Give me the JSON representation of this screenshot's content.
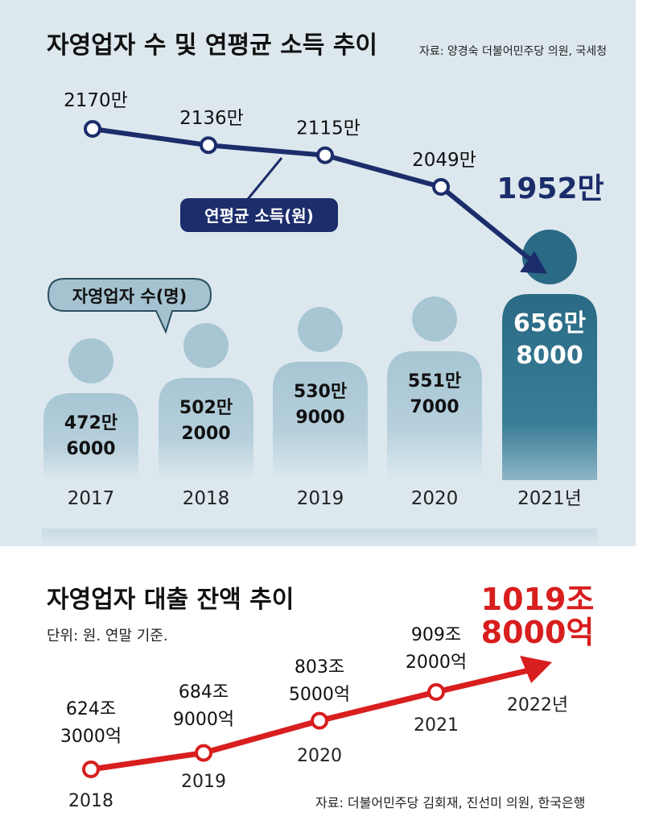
{
  "chart_data": [
    {
      "type": "line",
      "title": "자영업자 수 및 연평균 소득 추이",
      "source": "자료: 양경숙 더불어민주당 의원, 국세청",
      "series_name": "연평균 소득(원)",
      "x": [
        "2017",
        "2018",
        "2019",
        "2020",
        "2021년"
      ],
      "values": [
        2170,
        2136,
        2115,
        2049,
        1952
      ],
      "labels": [
        "2170만",
        "2136만",
        "2115만",
        "2049만",
        "1952만"
      ],
      "color": "#1c2d6b"
    },
    {
      "type": "bar",
      "series_name": "자영업자 수(명)",
      "categories": [
        "2017",
        "2018",
        "2019",
        "2020",
        "2021년"
      ],
      "values": [
        4726000,
        5022000,
        5309000,
        5517000,
        6568000
      ],
      "labels": [
        {
          "line1": "472만",
          "line2": "6000"
        },
        {
          "line1": "502만",
          "line2": "2000"
        },
        {
          "line1": "530만",
          "line2": "9000"
        },
        {
          "line1": "551만",
          "line2": "7000"
        },
        {
          "line1": "656만",
          "line2": "8000"
        }
      ],
      "color": "#a9c6d4",
      "highlight_color": "#2e6f88"
    },
    {
      "type": "line",
      "title": "자영업자 대출 잔액 추이",
      "subtitle": "단위: 원. 연말 기준.",
      "source": "자료: 더불어민주당 김회재, 진선미 의원, 한국은행",
      "x": [
        "2018",
        "2019",
        "2020",
        "2021",
        "2022년"
      ],
      "values": [
        6243000,
        6849000,
        8035000,
        9092000,
        10198000
      ],
      "labels": [
        {
          "line1": "624조",
          "line2": "3000억"
        },
        {
          "line1": "684조",
          "line2": "9000억"
        },
        {
          "line1": "803조",
          "line2": "5000억"
        },
        {
          "line1": "909조",
          "line2": "2000억"
        },
        {
          "line1": "1019조",
          "line2": "8000억"
        }
      ],
      "color": "#d81e1e"
    }
  ]
}
